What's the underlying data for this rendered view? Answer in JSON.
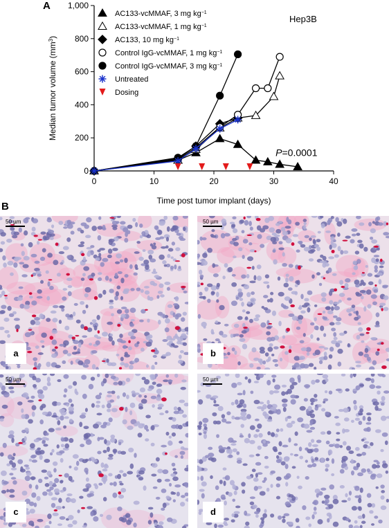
{
  "panel_a_letter": "A",
  "panel_b_letter": "B",
  "chart_data": {
    "type": "line",
    "title": "Hep3B",
    "xlabel": "Time post tumor implant (days)",
    "ylabel_main": "Median tumor volume (mm",
    "ylabel_sup": "3",
    "ylabel_close": ")",
    "xlim": [
      0,
      40
    ],
    "ylim": [
      0,
      1000
    ],
    "xticks": [
      0,
      10,
      20,
      30,
      40
    ],
    "yticks": [
      0,
      200,
      400,
      600,
      800,
      1000
    ],
    "ytick_labels": [
      "0",
      "200",
      "400",
      "600",
      "800",
      "1,000"
    ],
    "legend_position": "top-left",
    "annotation_italic": "P",
    "annotation_rest": "=0.0001",
    "annotation_at": [
      31,
      90
    ],
    "series": [
      {
        "name": "AC133-vcMMAF, 3 mg kg",
        "name_sup": "−1",
        "marker": "triangle",
        "fill": "#000000",
        "x": [
          0,
          14,
          17,
          21,
          24,
          27,
          29,
          31,
          34
        ],
        "y": [
          0,
          65,
          110,
          195,
          160,
          65,
          55,
          40,
          25
        ]
      },
      {
        "name": "AC133-vcMMAF, 1 mg kg",
        "name_sup": "−1",
        "marker": "triangle",
        "fill": "#ffffff",
        "x": [
          0,
          14,
          17,
          21,
          24,
          27,
          30,
          31
        ],
        "y": [
          0,
          65,
          130,
          260,
          320,
          335,
          450,
          575
        ]
      },
      {
        "name": "AC133, 10 mg kg",
        "name_sup": "−1",
        "marker": "diamond",
        "fill": "#000000",
        "x": [
          0,
          14,
          17,
          21,
          24
        ],
        "y": [
          0,
          75,
          150,
          285,
          320
        ]
      },
      {
        "name": "Control IgG-vcMMAF, 1 mg kg",
        "name_sup": "−1",
        "marker": "circle",
        "fill": "#ffffff",
        "x": [
          0,
          14,
          17,
          21,
          24,
          27,
          29,
          31
        ],
        "y": [
          0,
          70,
          140,
          265,
          340,
          500,
          500,
          690
        ]
      },
      {
        "name": "Control IgG-vcMMAF, 3 mg kg",
        "name_sup": "−1",
        "marker": "circle",
        "fill": "#000000",
        "x": [
          0,
          14,
          17,
          21,
          24
        ],
        "y": [
          0,
          80,
          150,
          455,
          705
        ]
      },
      {
        "name": "Untreated",
        "name_sup": "",
        "marker": "asterisk",
        "fill": "#1a33cc",
        "color": "#1a33cc",
        "x": [
          0,
          14,
          17,
          21,
          24
        ],
        "y": [
          0,
          60,
          135,
          255,
          310
        ]
      }
    ],
    "dosing": {
      "name": "Dosing",
      "marker": "triangle-down",
      "color": "#e31b1b",
      "x": [
        14,
        18,
        22,
        26
      ],
      "y": 25
    }
  },
  "micrographs": [
    {
      "label": "a",
      "scale_label": "50 µm",
      "stain": "strong"
    },
    {
      "label": "b",
      "scale_label": "50 µm",
      "stain": "strong"
    },
    {
      "label": "c",
      "scale_label": "50 µm",
      "stain": "weak"
    },
    {
      "label": "d",
      "scale_label": "50 µm",
      "stain": "none"
    }
  ]
}
